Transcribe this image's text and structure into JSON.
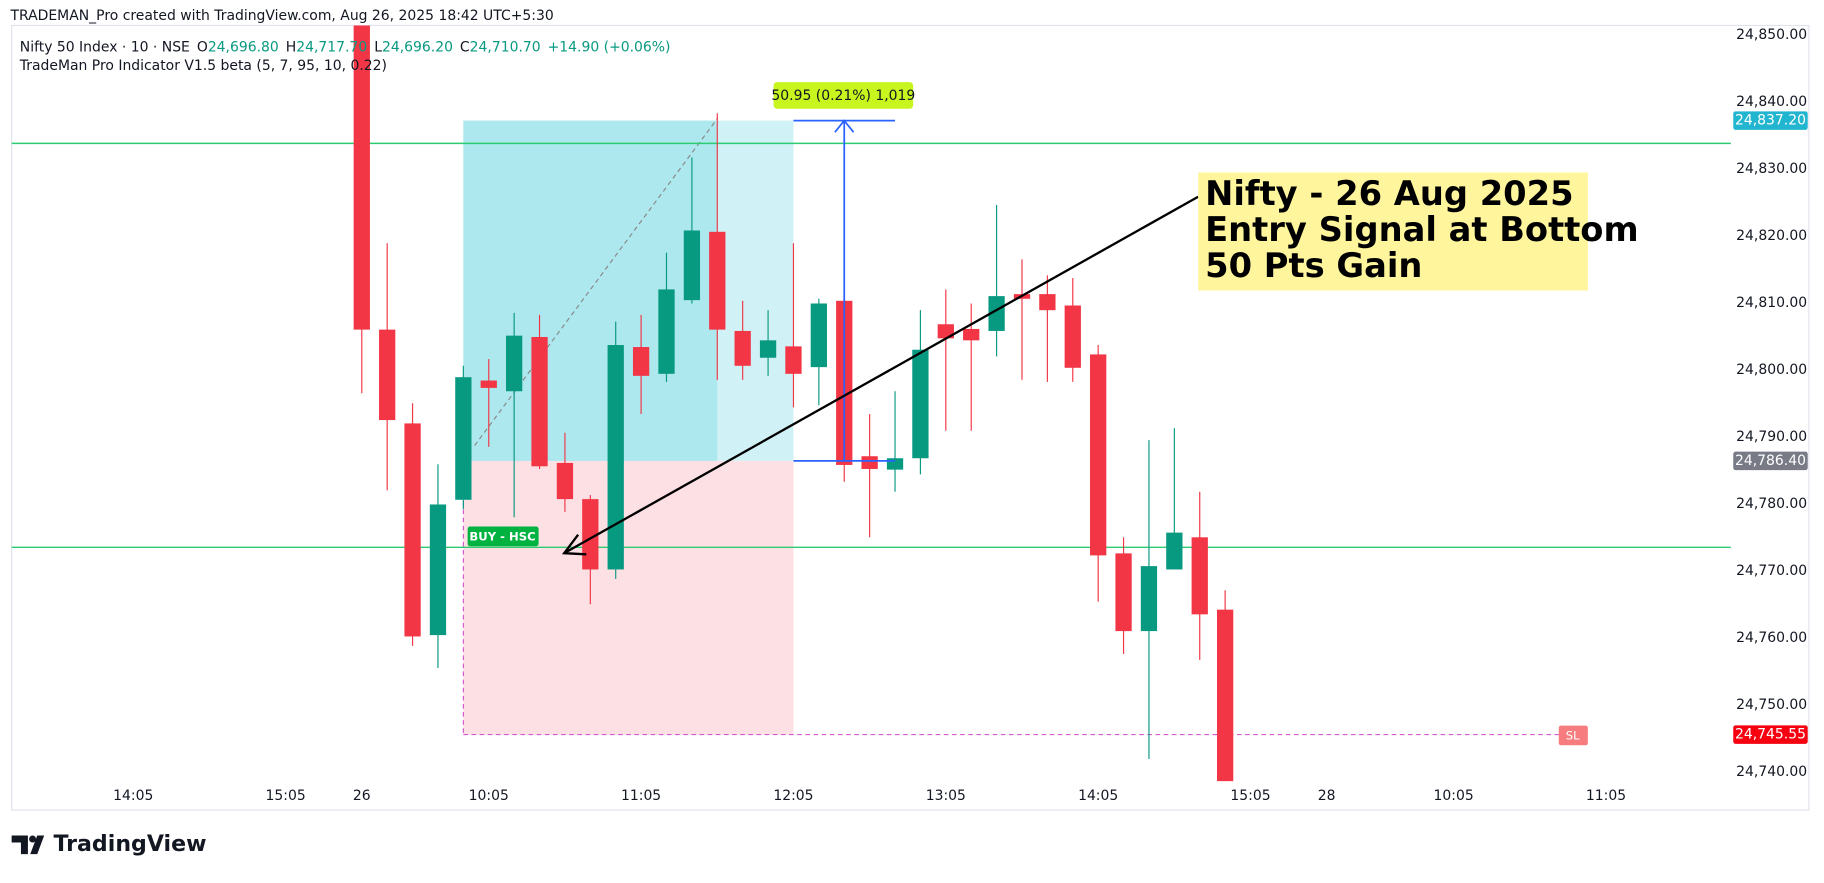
{
  "header": {
    "credit": "TRADEMAN_Pro created with TradingView.com, Aug 26, 2025 18:42 UTC+5:30",
    "symbol": "Nifty 50 Index · 10 · NSE",
    "o_label": "O",
    "o": "24,696.80",
    "h_label": "H",
    "h": "24,717.70",
    "l_label": "L",
    "l": "24,696.20",
    "c_label": "C",
    "c": "24,710.70",
    "change": "+14.90 (+0.06%)",
    "indicator": "TradeMan Pro Indicator V1.5 beta (5, 7, 95, 10, 0.22)"
  },
  "chart_data": {
    "type": "candlestick",
    "up_color": "#089981",
    "down_color": "#f23645",
    "open": [
      24853,
      24806,
      24792,
      24760.4,
      24780.6,
      24798.4,
      24796.8,
      24804.9,
      24786.1,
      24780.7,
      24770.2,
      24803.4,
      24799.4,
      24810.4,
      24820.6,
      24805.8,
      24801.8,
      24803.5,
      24800.4,
      24810.3,
      24787.1,
      24785.1,
      24786.8,
      24806.8,
      24806.1,
      24805.8,
      24811.3,
      24811.3,
      24809.6,
      24802.3,
      24772.6,
      24761,
      24770.2,
      24775,
      24764.2
    ],
    "high": [
      24856,
      24818.9,
      24795,
      24785.9,
      24800.6,
      24801.6,
      24808.5,
      24808.2,
      24790.6,
      24781.3,
      24807.2,
      24808.2,
      24817.5,
      24831.7,
      24838.3,
      24810.3,
      24808.9,
      24818.9,
      24810.6,
      24810.6,
      24793.4,
      24796.8,
      24808.9,
      24812,
      24809.9,
      24824.6,
      24816.5,
      24814.1,
      24813.7,
      24803.7,
      24775,
      24789.5,
      24791.3,
      24781.8,
      24767.1
    ],
    "low": [
      24796.5,
      24782,
      24758.8,
      24755.5,
      24779.2,
      24788.5,
      24778,
      24785.2,
      24778.8,
      24765,
      24768.8,
      24793.4,
      24798.2,
      24809.9,
      24798.5,
      24798.5,
      24799.1,
      24794.4,
      24794.7,
      24783.3,
      24775,
      24781.8,
      24784.4,
      24790.9,
      24790.9,
      24802,
      24798.5,
      24798.2,
      24798.2,
      24765.4,
      24757.6,
      24741.9,
      24770.2,
      24756.7,
      24735
    ],
    "close": [
      24806,
      24792.5,
      24760.2,
      24779.9,
      24798.9,
      24797.3,
      24805.1,
      24785.6,
      24780.7,
      24770.2,
      24803.7,
      24799.1,
      24812,
      24820.8,
      24806,
      24800.6,
      24804.4,
      24799.4,
      24809.9,
      24785.8,
      24785.2,
      24786.8,
      24803,
      24804.7,
      24804.4,
      24811,
      24810.6,
      24808.9,
      24800.3,
      24772.3,
      24761,
      24770.7,
      24775.7,
      24763.5,
      24735
    ],
    "xlim": [
      -13.79,
      53.92
    ],
    "xticks": [
      {
        "value": -9,
        "label": "14:05"
      },
      {
        "value": -3,
        "label": "15:05"
      },
      {
        "value": 0,
        "label": "26"
      },
      {
        "value": 5,
        "label": "10:05"
      },
      {
        "value": 11,
        "label": "11:05"
      },
      {
        "value": 17,
        "label": "12:05"
      },
      {
        "value": 23,
        "label": "13:05"
      },
      {
        "value": 29,
        "label": "14:05"
      },
      {
        "value": 35,
        "label": "15:05"
      },
      {
        "value": 38,
        "label": "28"
      },
      {
        "value": 43,
        "label": "10:05"
      },
      {
        "value": 49,
        "label": "11:05"
      }
    ],
    "ylim": [
      24738.6,
      24851.4
    ],
    "yticks": [
      {
        "value": 24740,
        "label": "24,740.00"
      },
      {
        "value": 24750,
        "label": "24,750.00"
      },
      {
        "value": 24760,
        "label": "24,760.00"
      },
      {
        "value": 24770,
        "label": "24,770.00"
      },
      {
        "value": 24780,
        "label": "24,780.00"
      },
      {
        "value": 24790,
        "label": "24,790.00"
      },
      {
        "value": 24800,
        "label": "24,800.00"
      },
      {
        "value": 24810,
        "label": "24,810.00"
      },
      {
        "value": 24820,
        "label": "24,820.00"
      },
      {
        "value": 24830,
        "label": "24,830.00"
      },
      {
        "value": 24840,
        "label": "24,840.00"
      },
      {
        "value": 24850,
        "label": "24,850.00"
      }
    ],
    "hlines": [
      24833.8,
      24773.5
    ],
    "price_labels": [
      {
        "value": 24837.2,
        "label": "24,837.20",
        "color": "#22b5d0"
      },
      {
        "value": 24786.4,
        "label": "24,786.40",
        "color": "#787b86"
      },
      {
        "value": 24745.55,
        "label": "24,745.55",
        "color": "#f7000f"
      }
    ],
    "annotation": [
      "Nifty - 26 Aug 2025",
      "Entry Signal at Bottom",
      "50 Pts Gain"
    ],
    "measure_label": "50.95 (0.21%) 1,019",
    "buy_label": "BUY -  HSC",
    "sl_label": "SL"
  },
  "footer": {
    "brand": "TradingView"
  }
}
